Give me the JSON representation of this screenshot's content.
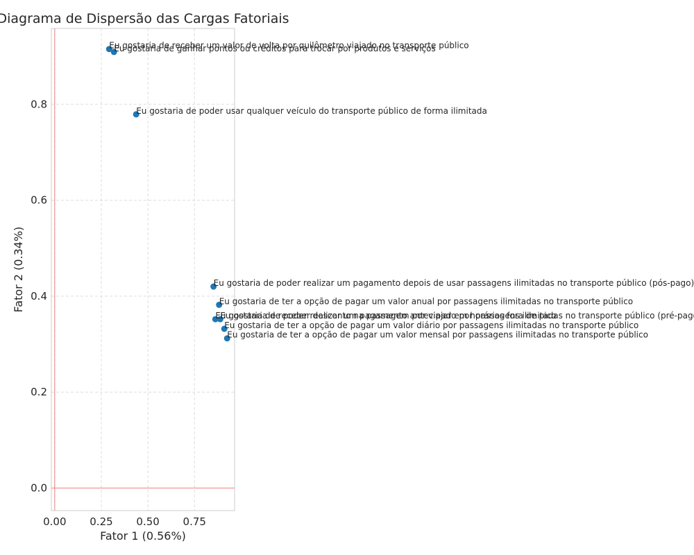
{
  "chart_data": {
    "type": "scatter",
    "title": "Diagrama de Dispersão das Cargas Fatoriais",
    "xlabel": "Fator 1 (0.56%)",
    "ylabel": "Fator 2 (0.34%)",
    "xlim": [
      -0.018,
      0.965
    ],
    "ylim": [
      -0.047,
      0.958
    ],
    "xticks": [
      0.0,
      0.25,
      0.5,
      0.75
    ],
    "xtick_labels": [
      "0.00",
      "0.25",
      "0.50",
      "0.75"
    ],
    "yticks": [
      0.0,
      0.2,
      0.4,
      0.6,
      0.8
    ],
    "ytick_labels": [
      "0.0",
      "0.2",
      "0.4",
      "0.6",
      "0.8"
    ],
    "grid": true,
    "reference_lines": {
      "x": 0,
      "y": 0,
      "color": "#f08080"
    },
    "point_color": "#1f77b4",
    "points": [
      {
        "x": 0.292,
        "y": 0.915,
        "label": "Eu gostaria de receber um valor de volta por quilômetro viajado no transporte público"
      },
      {
        "x": 0.318,
        "y": 0.909,
        "label": "Eu gostaria de ganhar pontos ou créditos para trocar por produtos e serviços"
      },
      {
        "x": 0.437,
        "y": 0.779,
        "label": "Eu gostaria de poder usar qualquer veículo do transporte público de forma ilimitada"
      },
      {
        "x": 0.852,
        "y": 0.42,
        "label": "Eu gostaria de poder realizar um pagamento depois de usar passagens ilimitadas no transporte público (pós-pago)"
      },
      {
        "x": 0.882,
        "y": 0.382,
        "label": "Eu gostaria de ter a opção de pagar um valor anual por passagens ilimitadas no transporte público"
      },
      {
        "x": 0.862,
        "y": 0.352,
        "label": "Eu gostaria de receber desconto na passagem por viajar em horários fora de pico"
      },
      {
        "x": 0.888,
        "y": 0.352,
        "label": "Eu gostaria de poder realizar um pagamento antecipado por passagens ilimitadas no transporte público (pré-pago)"
      },
      {
        "x": 0.91,
        "y": 0.332,
        "label": "Eu gostaria de ter a opção de pagar um valor diário por passagens ilimitadas no transporte público"
      },
      {
        "x": 0.925,
        "y": 0.312,
        "label": "Eu gostaria de ter a opção de pagar um valor mensal por passagens ilimitadas no transporte público"
      }
    ]
  }
}
